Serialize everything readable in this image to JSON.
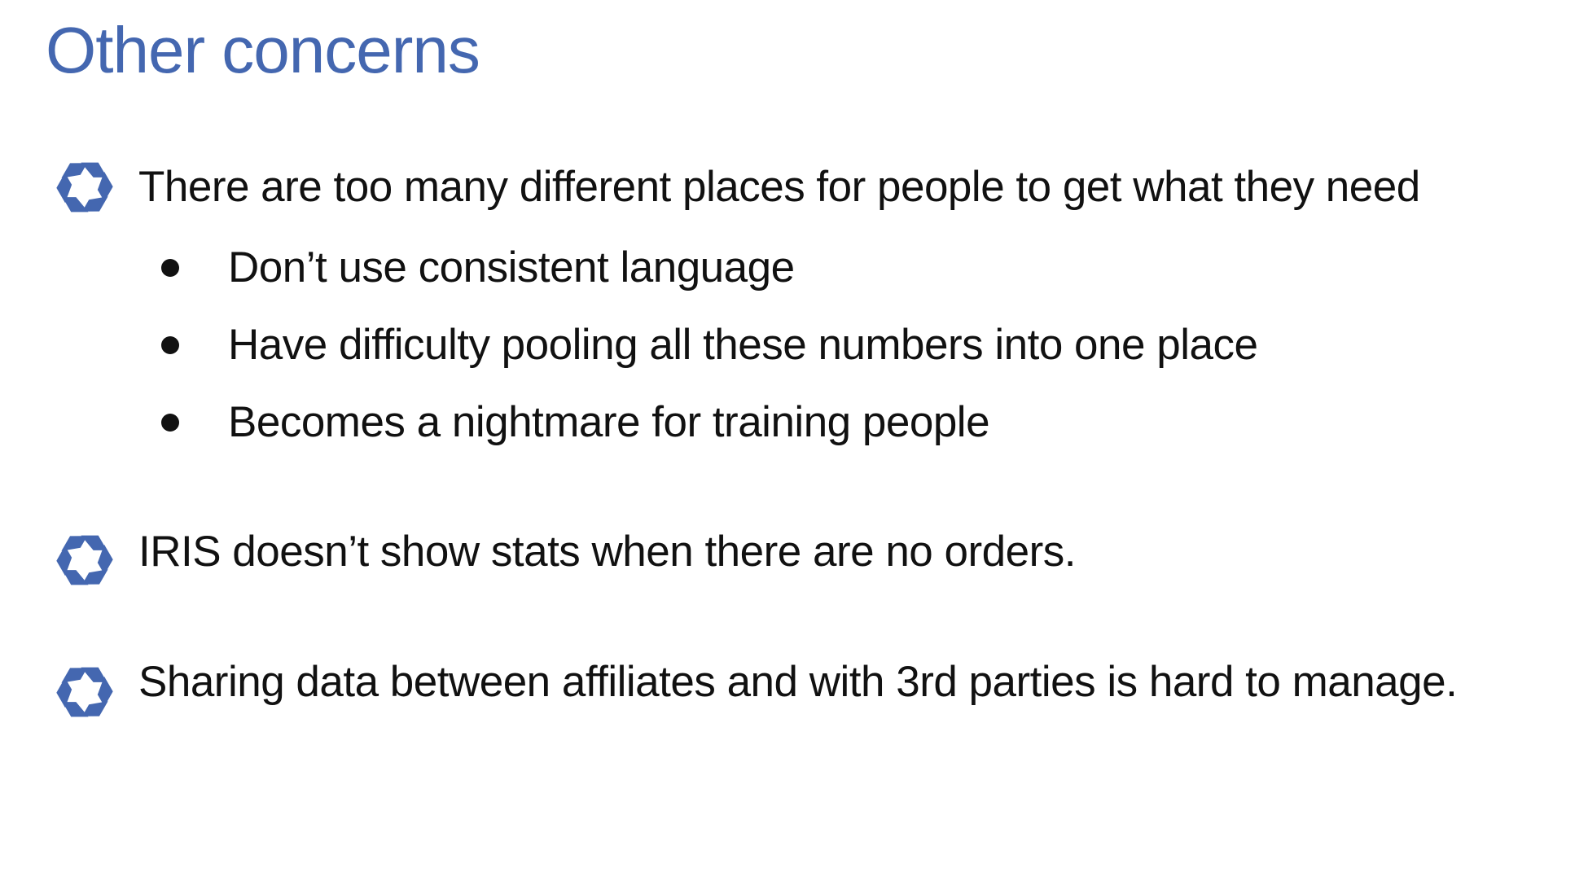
{
  "slide": {
    "title": "Other concerns",
    "accent_color": "#4467b0",
    "bullets": [
      {
        "icon": "aperture-icon",
        "text": "There are too many different places for people to get what they need",
        "sub_items": [
          "Don’t use consistent language",
          "Have difficulty pooling all these numbers into one place",
          "Becomes a nightmare for training people"
        ]
      },
      {
        "icon": "aperture-icon",
        "text": "IRIS doesn’t show stats when there are no orders."
      },
      {
        "icon": "aperture-icon",
        "text": "Sharing data between affiliates and with 3rd parties is hard to manage."
      }
    ]
  }
}
